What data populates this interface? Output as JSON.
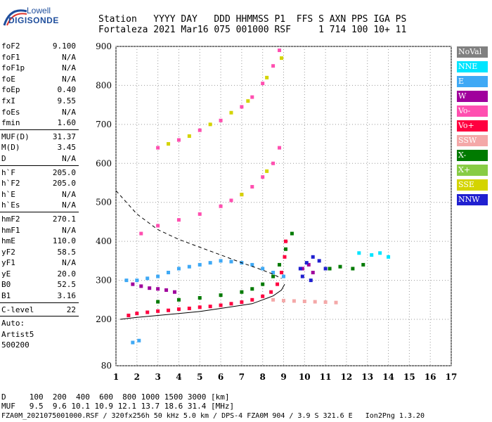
{
  "logo": {
    "line1": "Lowell",
    "line2": "DIGISONDE"
  },
  "header": {
    "row1": "Station   YYYY DAY   DDD HHMMSS P1  FFS S AXN PPS IGA PS",
    "row2": "Fortaleza 2021 Mar16 075 001000 RSF     1 714 100 10+ 11"
  },
  "params": [
    {
      "name": "foF2",
      "value": "9.100"
    },
    {
      "name": "foF1",
      "value": "N/A"
    },
    {
      "name": "foF1p",
      "value": "N/A"
    },
    {
      "name": "foE",
      "value": "N/A"
    },
    {
      "name": "foEp",
      "value": "0.40"
    },
    {
      "name": "fxI",
      "value": "9.55"
    },
    {
      "name": "foEs",
      "value": "N/A"
    },
    {
      "name": "fmin",
      "value": "1.60"
    },
    {
      "sep": true
    },
    {
      "name": "MUF(D)",
      "value": "31.37"
    },
    {
      "name": "M(D)",
      "value": "3.45"
    },
    {
      "name": "D",
      "value": "N/A"
    },
    {
      "sep": true
    },
    {
      "name": "h`F",
      "value": "205.0"
    },
    {
      "name": "h`F2",
      "value": "205.0"
    },
    {
      "name": "h`E",
      "value": "N/A"
    },
    {
      "name": "h`Es",
      "value": "N/A"
    },
    {
      "sep": true
    },
    {
      "name": "hmF2",
      "value": "270.1"
    },
    {
      "name": "hmF1",
      "value": "N/A"
    },
    {
      "name": "hmE",
      "value": "110.0"
    },
    {
      "name": "yF2",
      "value": "58.5"
    },
    {
      "name": "yF1",
      "value": "N/A"
    },
    {
      "name": "yE",
      "value": "20.0"
    },
    {
      "name": "B0",
      "value": "52.5"
    },
    {
      "name": "B1",
      "value": "3.16"
    },
    {
      "sep": true
    },
    {
      "name": "C-level",
      "value": "22"
    },
    {
      "sep": true
    },
    {
      "name": "Auto:",
      "value": ""
    },
    {
      "name": "Artist5",
      "value": ""
    },
    {
      "name": "500200",
      "value": ""
    }
  ],
  "legend": [
    {
      "label": "NoVal",
      "color": "#808080"
    },
    {
      "label": "NNE",
      "color": "#00e5ff"
    },
    {
      "label": "E",
      "color": "#3fa9f5"
    },
    {
      "label": "W",
      "color": "#a0009c"
    },
    {
      "label": "Vo-",
      "color": "#ff4fb0"
    },
    {
      "label": "Vo+",
      "color": "#ff0040"
    },
    {
      "label": "SSW",
      "color": "#f4a8a8"
    },
    {
      "label": "X-",
      "color": "#007a00"
    },
    {
      "label": "X+",
      "color": "#88cc44"
    },
    {
      "label": "SSE",
      "color": "#d4d400"
    },
    {
      "label": "NNW",
      "color": "#2020d0"
    }
  ],
  "footer": {
    "row1": "D     100  200  400  600  800 1000 1500 3000 [km]",
    "row2": "MUF   9.5  9.6 10.1 10.9 12.1 13.7 18.6 31.4 [MHz]"
  },
  "file_line": "FZA0M_2021075001000.RSF / 320fx256h 50 kHz 5.0 km / DPS-4 FZA0M 904 / 3.9 S 321.6 E   Ion2Png 1.3.20",
  "chart_data": {
    "type": "scatter",
    "xlim": [
      1,
      17
    ],
    "ylim": [
      80,
      900
    ],
    "x_ticks": [
      1,
      2,
      3,
      4,
      5,
      6,
      7,
      8,
      9,
      10,
      11,
      12,
      13,
      14,
      15,
      16,
      17
    ],
    "y_ticks": [
      80,
      200,
      300,
      400,
      500,
      600,
      700,
      800,
      900
    ],
    "grid": true,
    "y_scale": "piecewise",
    "series": [
      {
        "name": "Vo+",
        "color": "#ff0040",
        "points": [
          [
            1.6,
            210
          ],
          [
            2,
            215
          ],
          [
            2.5,
            218
          ],
          [
            3,
            221
          ],
          [
            3.5,
            223
          ],
          [
            4,
            226
          ],
          [
            4.5,
            228
          ],
          [
            5,
            231
          ],
          [
            5.5,
            233
          ],
          [
            6,
            236
          ],
          [
            6.5,
            240
          ],
          [
            7,
            244
          ],
          [
            7.5,
            250
          ],
          [
            8,
            259
          ],
          [
            8.4,
            270
          ],
          [
            8.7,
            290
          ],
          [
            8.9,
            320
          ],
          [
            9.05,
            360
          ],
          [
            9.1,
            400
          ]
        ]
      },
      {
        "name": "E",
        "color": "#3fa9f5",
        "points": [
          [
            1.5,
            300
          ],
          [
            2,
            300
          ],
          [
            2.5,
            305
          ],
          [
            3,
            310
          ],
          [
            3.5,
            320
          ],
          [
            4,
            330
          ],
          [
            4.5,
            335
          ],
          [
            5,
            340
          ],
          [
            5.5,
            345
          ],
          [
            6,
            350
          ],
          [
            6.5,
            348
          ],
          [
            7,
            345
          ],
          [
            7.5,
            340
          ],
          [
            8,
            330
          ],
          [
            8.5,
            320
          ],
          [
            9,
            310
          ],
          [
            1.8,
            140
          ],
          [
            2.1,
            145
          ]
        ]
      },
      {
        "name": "W",
        "color": "#a0009c",
        "points": [
          [
            1.8,
            290
          ],
          [
            2.2,
            285
          ],
          [
            2.6,
            280
          ],
          [
            3,
            278
          ],
          [
            3.4,
            275
          ],
          [
            3.8,
            270
          ],
          [
            9.9,
            330
          ],
          [
            10.2,
            340
          ],
          [
            10.4,
            320
          ]
        ]
      },
      {
        "name": "X-",
        "color": "#007a00",
        "points": [
          [
            3,
            245
          ],
          [
            4,
            250
          ],
          [
            5,
            255
          ],
          [
            6,
            262
          ],
          [
            7,
            270
          ],
          [
            7.5,
            278
          ],
          [
            8,
            290
          ],
          [
            8.5,
            310
          ],
          [
            8.8,
            340
          ],
          [
            9.1,
            380
          ],
          [
            9.4,
            420
          ],
          [
            11.2,
            330
          ],
          [
            11.7,
            335
          ],
          [
            12.3,
            330
          ],
          [
            12.8,
            340
          ]
        ]
      },
      {
        "name": "SSW",
        "color": "#f4a8a8",
        "points": [
          [
            8.5,
            250
          ],
          [
            9,
            248
          ],
          [
            9.5,
            247
          ],
          [
            10,
            246
          ],
          [
            10.5,
            245
          ],
          [
            11,
            244
          ],
          [
            11.5,
            243
          ]
        ]
      },
      {
        "name": "NNW",
        "color": "#2020d0",
        "points": [
          [
            9.8,
            330
          ],
          [
            10.1,
            345
          ],
          [
            10.4,
            360
          ],
          [
            10.7,
            350
          ],
          [
            11,
            330
          ],
          [
            9.9,
            310
          ],
          [
            10.3,
            300
          ]
        ]
      },
      {
        "name": "Vo-",
        "color": "#ff4fb0",
        "points": [
          [
            2.2,
            420
          ],
          [
            3,
            440
          ],
          [
            4,
            455
          ],
          [
            5,
            470
          ],
          [
            6,
            490
          ],
          [
            6.5,
            505
          ],
          [
            7,
            520
          ],
          [
            7.5,
            540
          ],
          [
            8,
            565
          ],
          [
            8.5,
            600
          ],
          [
            8.8,
            640
          ],
          [
            3,
            640
          ],
          [
            4,
            660
          ],
          [
            5,
            685
          ],
          [
            6,
            710
          ],
          [
            7,
            745
          ],
          [
            7.5,
            770
          ],
          [
            8,
            805
          ],
          [
            8.5,
            850
          ],
          [
            8.8,
            890
          ]
        ]
      },
      {
        "name": "SSE",
        "color": "#d4d400",
        "points": [
          [
            3.5,
            650
          ],
          [
            4.5,
            670
          ],
          [
            5.5,
            700
          ],
          [
            6.5,
            730
          ],
          [
            7.3,
            760
          ],
          [
            8.2,
            820
          ],
          [
            8.9,
            870
          ],
          [
            7,
            520
          ],
          [
            8.2,
            580
          ]
        ]
      },
      {
        "name": "NNE",
        "color": "#00e5ff",
        "points": [
          [
            12.6,
            370
          ],
          [
            13.2,
            365
          ],
          [
            13.6,
            370
          ],
          [
            14,
            360
          ]
        ]
      }
    ],
    "lines": [
      {
        "name": "profile",
        "style": "solid",
        "points": [
          [
            1.2,
            200
          ],
          [
            2,
            205
          ],
          [
            3,
            210
          ],
          [
            4,
            215
          ],
          [
            5,
            220
          ],
          [
            6,
            228
          ],
          [
            7,
            236
          ],
          [
            7.5,
            240
          ],
          [
            8,
            250
          ],
          [
            8.5,
            260
          ],
          [
            8.9,
            275
          ],
          [
            9.05,
            290
          ]
        ]
      },
      {
        "name": "virtual",
        "style": "dashed",
        "points": [
          [
            1,
            530
          ],
          [
            1.5,
            500
          ],
          [
            2,
            470
          ],
          [
            3,
            430
          ],
          [
            4,
            405
          ],
          [
            5,
            385
          ],
          [
            6,
            365
          ],
          [
            7,
            345
          ],
          [
            7.8,
            330
          ],
          [
            8.4,
            318
          ],
          [
            8.9,
            305
          ]
        ]
      }
    ]
  }
}
